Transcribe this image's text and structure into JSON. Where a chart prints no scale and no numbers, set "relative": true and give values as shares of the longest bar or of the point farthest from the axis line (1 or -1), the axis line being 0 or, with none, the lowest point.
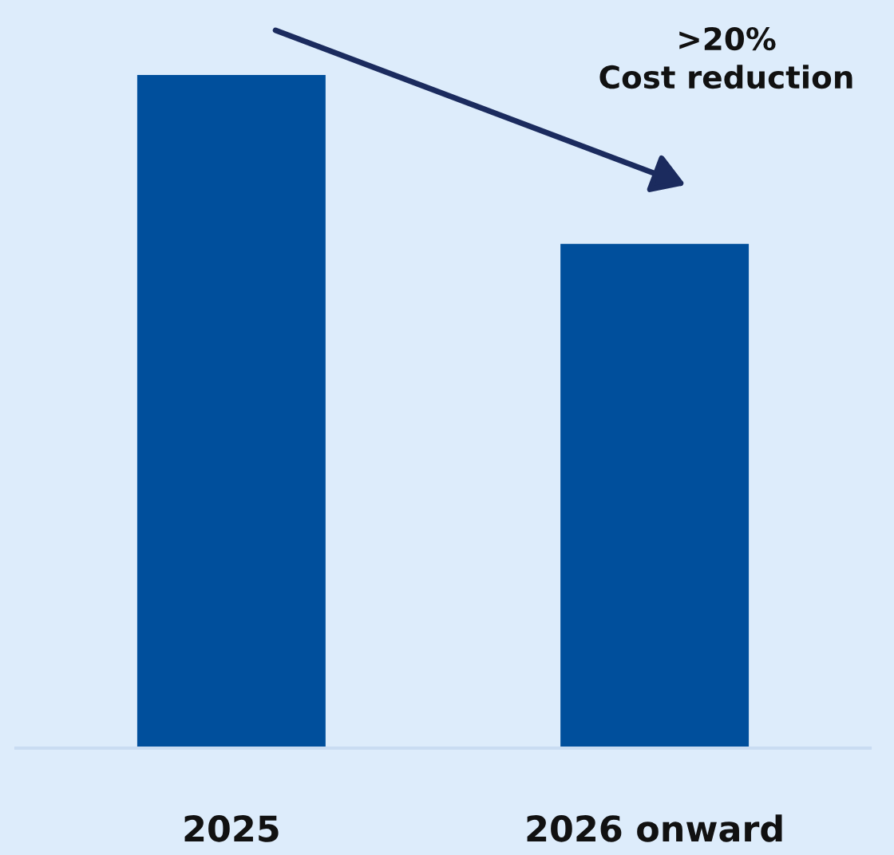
{
  "chart_data": {
    "type": "bar",
    "relative": true,
    "categories": [
      "2025",
      "2026 onward"
    ],
    "values": [
      1,
      0.749
    ],
    "color": "#004f9c",
    "annotations": [
      ">20%\nCost reduction"
    ],
    "grid": false,
    "legend": false
  }
}
